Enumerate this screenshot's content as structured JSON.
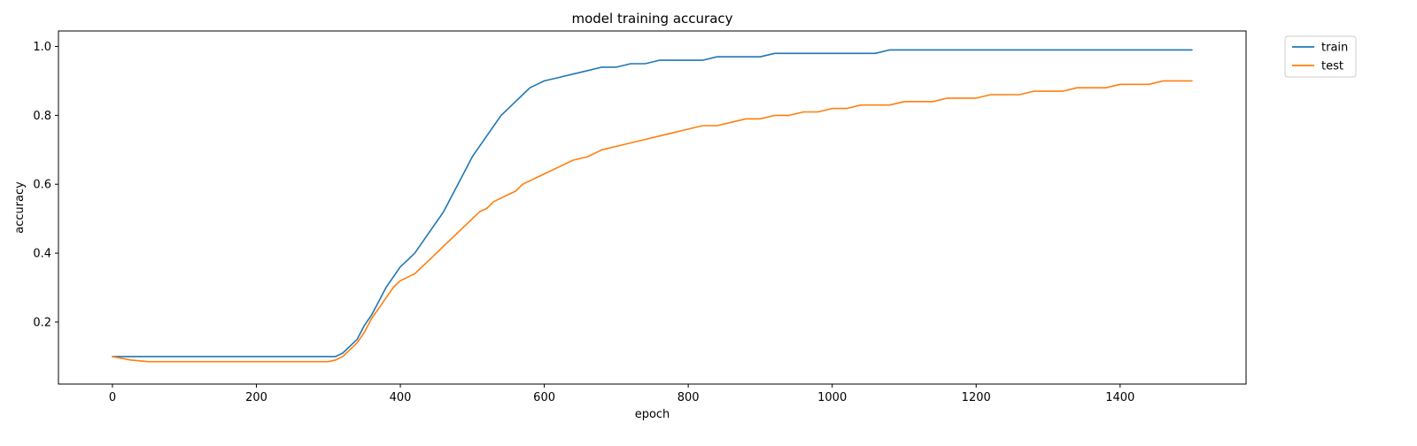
{
  "chart_data": {
    "type": "line",
    "title": "model training accuracy",
    "xlabel": "epoch",
    "ylabel": "accuracy",
    "xlim": [
      -75,
      1575
    ],
    "ylim": [
      0.02,
      1.045
    ],
    "x_ticks": [
      0,
      200,
      400,
      600,
      800,
      1000,
      1200,
      1400
    ],
    "y_ticks": [
      0.2,
      0.4,
      0.6,
      0.8,
      1.0
    ],
    "x_tick_labels": [
      "0",
      "200",
      "400",
      "600",
      "800",
      "1000",
      "1200",
      "1400"
    ],
    "y_tick_labels": [
      "0.2",
      "0.4",
      "0.6",
      "0.8",
      "1.0"
    ],
    "grid": false,
    "legend_placement": "outside top-right",
    "x": [
      0,
      25,
      50,
      75,
      100,
      125,
      150,
      175,
      200,
      225,
      250,
      275,
      300,
      310,
      320,
      330,
      340,
      350,
      360,
      370,
      380,
      390,
      400,
      410,
      420,
      430,
      440,
      450,
      460,
      470,
      480,
      490,
      500,
      510,
      520,
      530,
      540,
      550,
      560,
      570,
      580,
      590,
      600,
      620,
      640,
      660,
      680,
      700,
      720,
      740,
      760,
      780,
      800,
      820,
      840,
      860,
      880,
      900,
      920,
      940,
      960,
      980,
      1000,
      1020,
      1040,
      1060,
      1080,
      1100,
      1120,
      1140,
      1160,
      1180,
      1200,
      1220,
      1240,
      1260,
      1280,
      1300,
      1320,
      1340,
      1360,
      1380,
      1400,
      1420,
      1440,
      1460,
      1480,
      1500
    ],
    "series": [
      {
        "name": "train",
        "color": "#1f77b4",
        "values": [
          0.1,
          0.1,
          0.1,
          0.1,
          0.1,
          0.1,
          0.1,
          0.1,
          0.1,
          0.1,
          0.1,
          0.1,
          0.1,
          0.1,
          0.11,
          0.13,
          0.15,
          0.19,
          0.22,
          0.26,
          0.3,
          0.33,
          0.36,
          0.38,
          0.4,
          0.43,
          0.46,
          0.49,
          0.52,
          0.56,
          0.6,
          0.64,
          0.68,
          0.71,
          0.74,
          0.77,
          0.8,
          0.82,
          0.84,
          0.86,
          0.88,
          0.89,
          0.9,
          0.91,
          0.92,
          0.93,
          0.94,
          0.94,
          0.95,
          0.95,
          0.96,
          0.96,
          0.96,
          0.96,
          0.97,
          0.97,
          0.97,
          0.97,
          0.98,
          0.98,
          0.98,
          0.98,
          0.98,
          0.98,
          0.98,
          0.98,
          0.99,
          0.99,
          0.99,
          0.99,
          0.99,
          0.99,
          0.99,
          0.99,
          0.99,
          0.99,
          0.99,
          0.99,
          0.99,
          0.99,
          0.99,
          0.99,
          0.99,
          0.99,
          0.99,
          0.99,
          0.99,
          0.99
        ]
      },
      {
        "name": "test",
        "color": "#ff7f0e",
        "values": [
          0.1,
          0.09,
          0.085,
          0.085,
          0.085,
          0.085,
          0.085,
          0.085,
          0.085,
          0.085,
          0.085,
          0.085,
          0.085,
          0.09,
          0.1,
          0.12,
          0.14,
          0.17,
          0.21,
          0.24,
          0.27,
          0.3,
          0.32,
          0.33,
          0.34,
          0.36,
          0.38,
          0.4,
          0.42,
          0.44,
          0.46,
          0.48,
          0.5,
          0.52,
          0.53,
          0.55,
          0.56,
          0.57,
          0.58,
          0.6,
          0.61,
          0.62,
          0.63,
          0.65,
          0.67,
          0.68,
          0.7,
          0.71,
          0.72,
          0.73,
          0.74,
          0.75,
          0.76,
          0.77,
          0.77,
          0.78,
          0.79,
          0.79,
          0.8,
          0.8,
          0.81,
          0.81,
          0.82,
          0.82,
          0.83,
          0.83,
          0.83,
          0.84,
          0.84,
          0.84,
          0.85,
          0.85,
          0.85,
          0.86,
          0.86,
          0.86,
          0.87,
          0.87,
          0.87,
          0.88,
          0.88,
          0.88,
          0.89,
          0.89,
          0.89,
          0.9,
          0.9,
          0.9
        ]
      }
    ]
  }
}
